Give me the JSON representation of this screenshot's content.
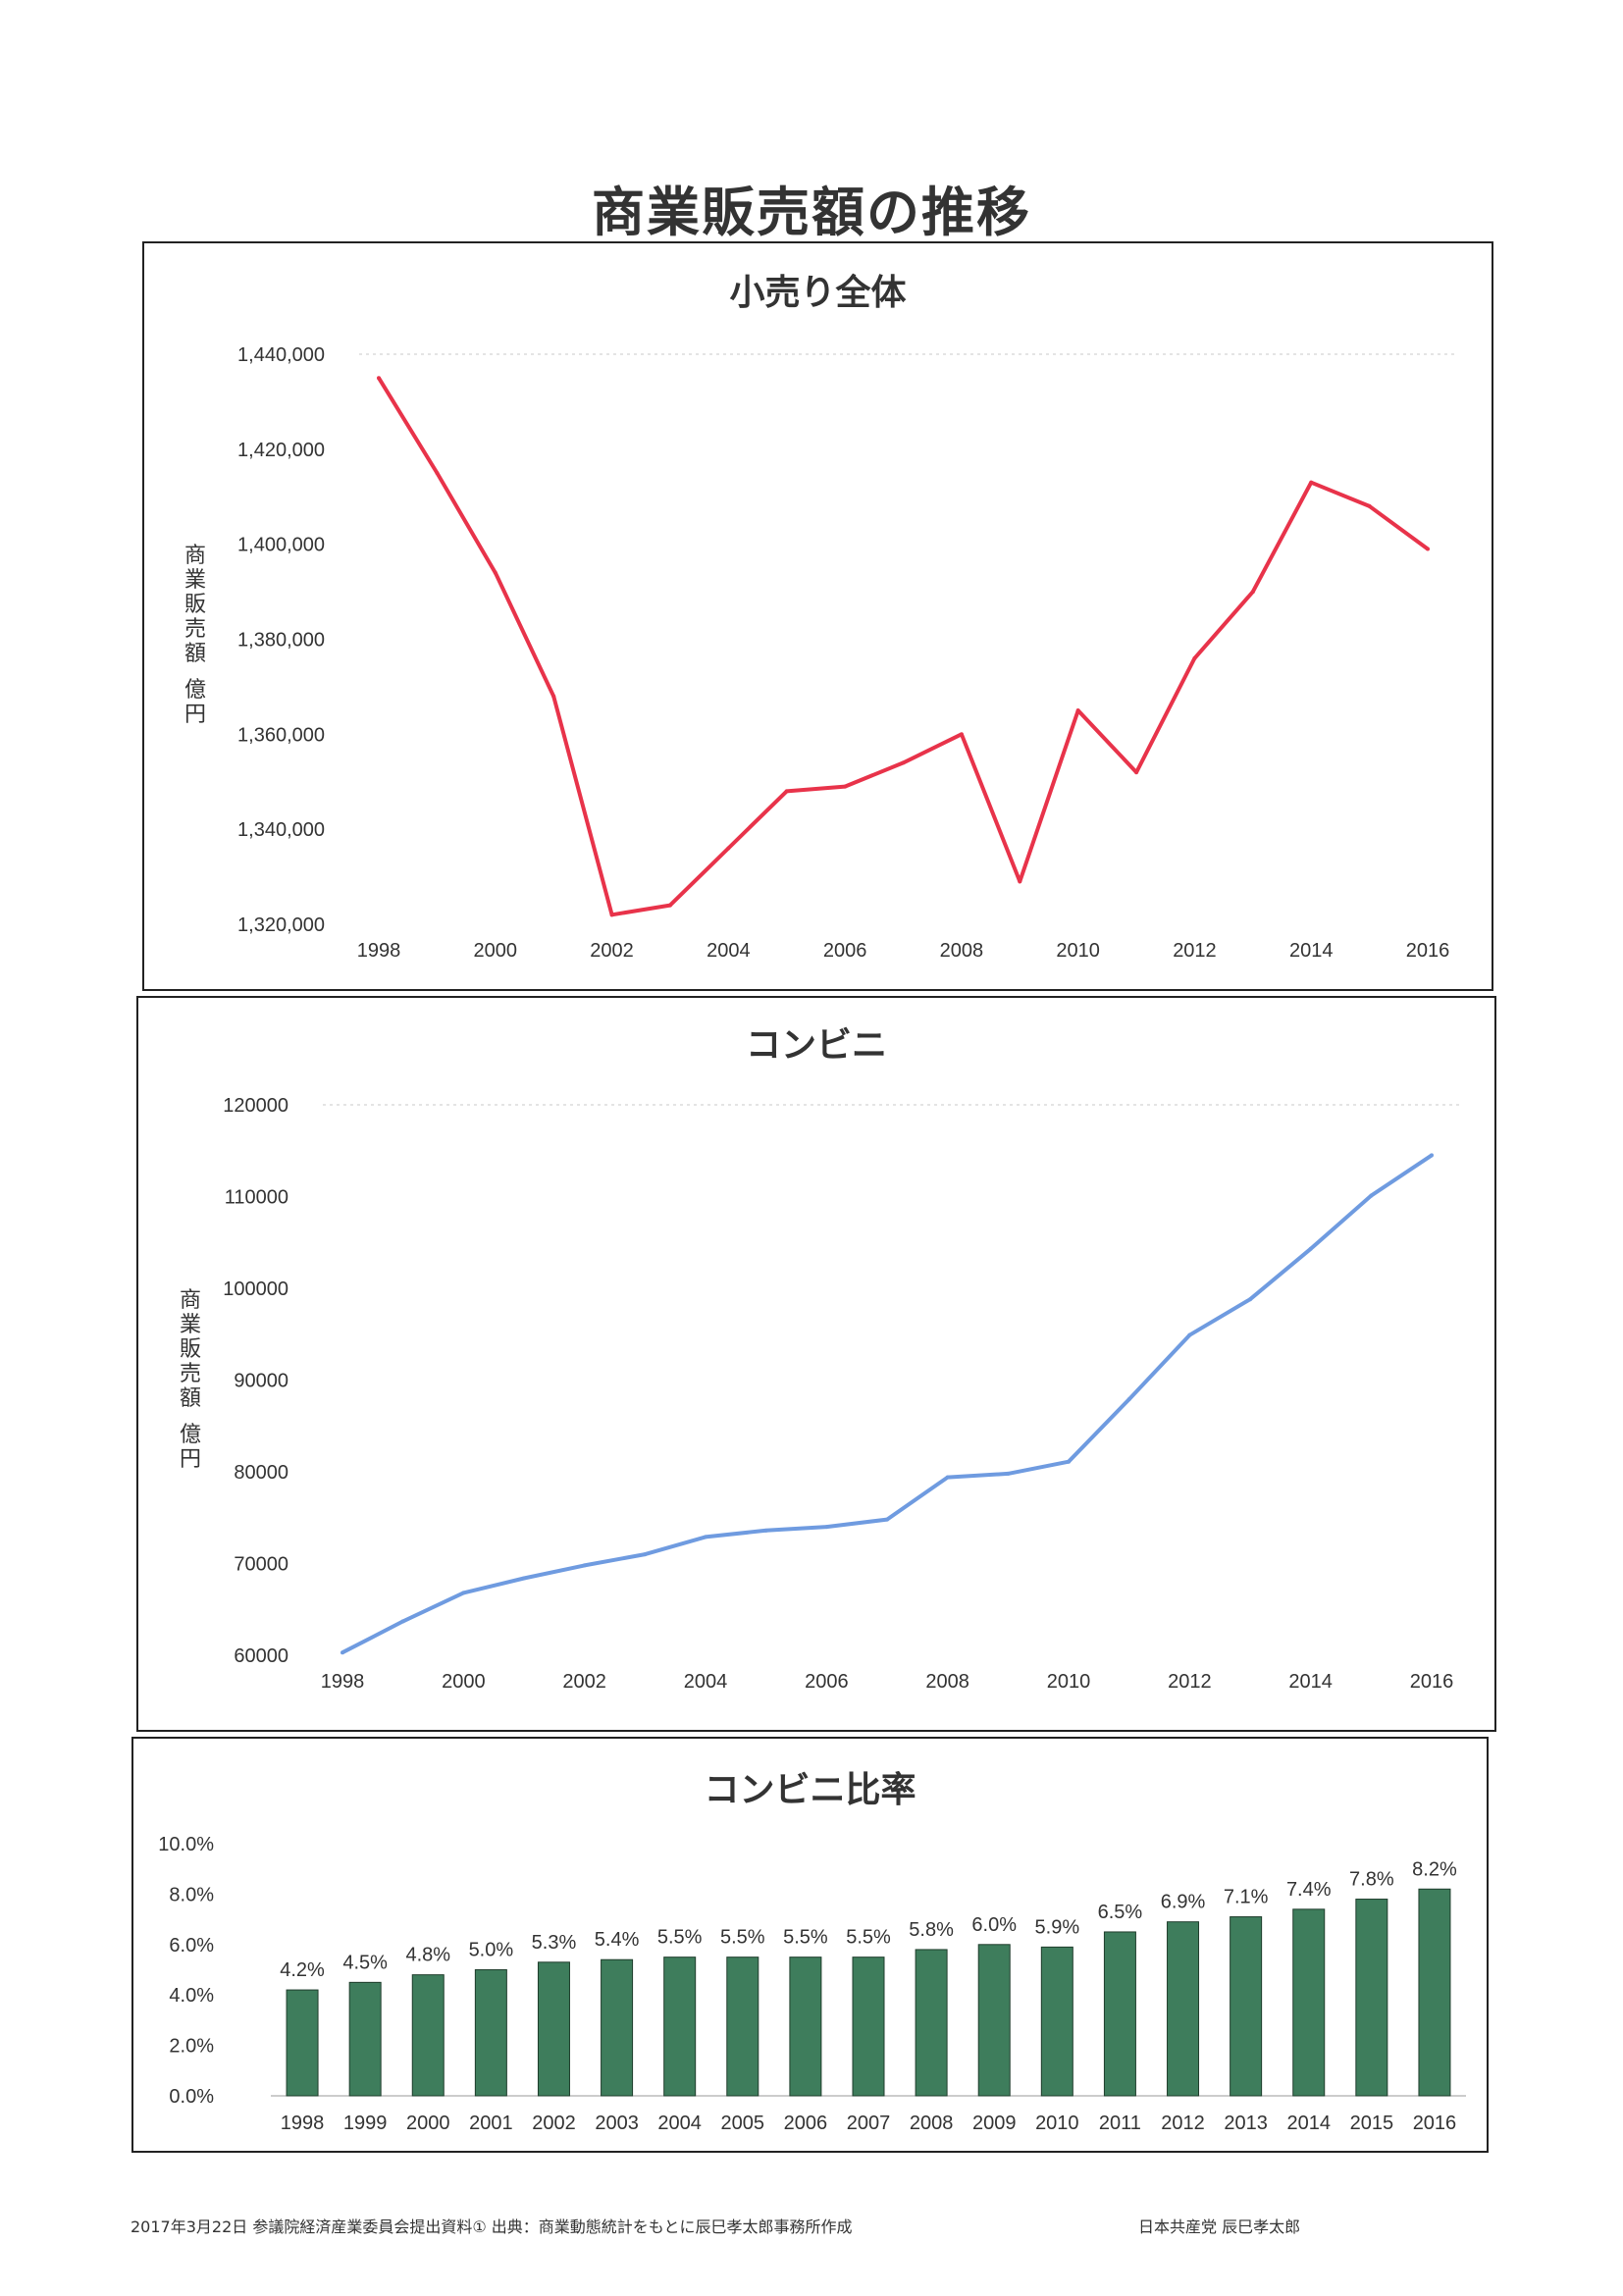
{
  "page": {
    "title": "商業販売額の推移",
    "footer_left": "2017年3月22日 参議院経済産業委員会提出資料① 出典：商業動態統計をもとに辰巳孝太郎事務所作成",
    "footer_right": "日本共産党 辰巳孝太郎"
  },
  "colors": {
    "line1": "#e8334a",
    "line2": "#6f9be0",
    "bar": "#3e7d5c"
  },
  "chart_data": [
    {
      "type": "line",
      "title": "小売り全体",
      "ylabel": "商業販売額 億円",
      "x": [
        1998,
        1999,
        2000,
        2001,
        2002,
        2003,
        2004,
        2005,
        2006,
        2007,
        2008,
        2009,
        2010,
        2011,
        2012,
        2013,
        2014,
        2015,
        2016
      ],
      "values": [
        1435000,
        1415000,
        1394000,
        1368000,
        1322000,
        1324000,
        1336000,
        1348000,
        1349000,
        1354000,
        1360000,
        1329000,
        1365000,
        1352000,
        1376000,
        1390000,
        1413000,
        1408000,
        1399000
      ],
      "ylim": [
        1320000,
        1440000
      ],
      "yticks": [
        "1,320,000",
        "1,340,000",
        "1,360,000",
        "1,380,000",
        "1,400,000",
        "1,420,000",
        "1,440,000"
      ],
      "xticks": [
        "1998",
        "2000",
        "2002",
        "2004",
        "2006",
        "2008",
        "2010",
        "2012",
        "2014",
        "2016"
      ],
      "grid": "top only"
    },
    {
      "type": "line",
      "title": "コンビニ",
      "ylabel": "商業販売額 億円",
      "x": [
        1998,
        1999,
        2000,
        2001,
        2002,
        2003,
        2004,
        2005,
        2006,
        2007,
        2008,
        2009,
        2010,
        2011,
        2012,
        2013,
        2014,
        2015,
        2016
      ],
      "values": [
        60300,
        63700,
        66800,
        68400,
        69800,
        71000,
        72900,
        73600,
        74000,
        74800,
        79400,
        79800,
        81100,
        87900,
        94900,
        98800,
        104300,
        110100,
        114500
      ],
      "ylim": [
        60000,
        120000
      ],
      "yticks": [
        "60000",
        "70000",
        "80000",
        "90000",
        "100000",
        "110000",
        "120000"
      ],
      "xticks": [
        "1998",
        "2000",
        "2002",
        "2004",
        "2006",
        "2008",
        "2010",
        "2012",
        "2014",
        "2016"
      ],
      "grid": "top only"
    },
    {
      "type": "bar",
      "title": "コンビニ比率",
      "categories": [
        "1998",
        "1999",
        "2000",
        "2001",
        "2002",
        "2003",
        "2004",
        "2005",
        "2006",
        "2007",
        "2008",
        "2009",
        "2010",
        "2011",
        "2012",
        "2013",
        "2014",
        "2015",
        "2016"
      ],
      "values": [
        4.2,
        4.5,
        4.8,
        5.0,
        5.3,
        5.4,
        5.5,
        5.5,
        5.5,
        5.5,
        5.8,
        6.0,
        5.9,
        6.5,
        6.9,
        7.1,
        7.4,
        7.8,
        8.2
      ],
      "data_labels": [
        "4.2%",
        "4.5%",
        "4.8%",
        "5.0%",
        "5.3%",
        "5.4%",
        "5.5%",
        "5.5%",
        "5.5%",
        "5.5%",
        "5.8%",
        "6.0%",
        "5.9%",
        "6.5%",
        "6.9%",
        "7.1%",
        "7.4%",
        "7.8%",
        "8.2%"
      ],
      "ylim": [
        0,
        10
      ],
      "yticks": [
        "0.0%",
        "2.0%",
        "4.0%",
        "6.0%",
        "8.0%",
        "10.0%"
      ]
    }
  ]
}
